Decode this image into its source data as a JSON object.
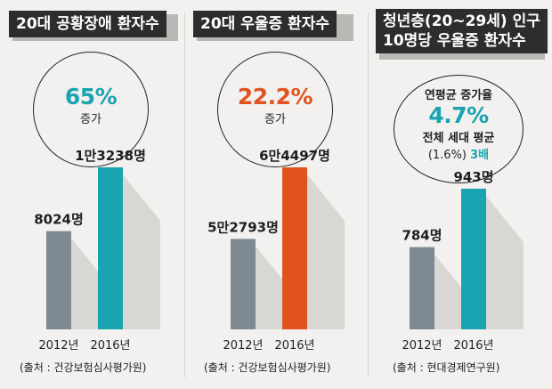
{
  "colors": {
    "background": "#f2f1ef",
    "title_bg": "#2d2d2d",
    "gray_bar": "#7e8a91",
    "teal": "#1aa3b0",
    "orange": "#e0531f",
    "shadow": "#d8d7d4"
  },
  "panels": [
    {
      "title_lines": [
        "20대 공황장애 환자수"
      ],
      "circle": {
        "big": "65%",
        "big_color": "#1aa3b0",
        "sub": "증가"
      },
      "source": "(출처 : 건강보험심사평가원)"
    },
    {
      "title_lines": [
        "20대 우울증 환자수"
      ],
      "circle": {
        "big": "22.2%",
        "big_color": "#e0531f",
        "sub": "증가"
      },
      "source": "(출처 : 건강보험심사평가원)"
    },
    {
      "title_lines": [
        "청년층(20~29세) 인구",
        "10명당 우울증 환자수"
      ],
      "circle": {
        "line1": "연평균 증가율",
        "big": "4.7%",
        "big_color": "#1aa3b0",
        "line3": "전체 세대 평균",
        "line4_prefix": "(1.6%) ",
        "line4_accent": "3배"
      },
      "source": "(출처 : 현대경제연구원)"
    }
  ],
  "chart_data": [
    {
      "type": "bar",
      "categories": [
        "2012년",
        "2016년"
      ],
      "values": [
        8024,
        13238
      ],
      "value_labels": [
        "8024명",
        "1만3238명"
      ],
      "bar_colors": [
        "#7e8a91",
        "#1aa3b0"
      ],
      "title": "20대 공황장애 환자수",
      "xlabel": "",
      "ylabel": ""
    },
    {
      "type": "bar",
      "categories": [
        "2012년",
        "2016년"
      ],
      "values": [
        52793,
        64497
      ],
      "value_labels": [
        "5만2793명",
        "6만4497명"
      ],
      "bar_colors": [
        "#7e8a91",
        "#e0531f"
      ],
      "title": "20대 우울증 환자수",
      "xlabel": "",
      "ylabel": ""
    },
    {
      "type": "bar",
      "categories": [
        "2012년",
        "2016년"
      ],
      "values": [
        784,
        943
      ],
      "value_labels": [
        "784명",
        "943명"
      ],
      "bar_colors": [
        "#7e8a91",
        "#1aa3b0"
      ],
      "title": "청년층(20~29세) 인구 10명당 우울증 환자수",
      "xlabel": "",
      "ylabel": ""
    }
  ]
}
